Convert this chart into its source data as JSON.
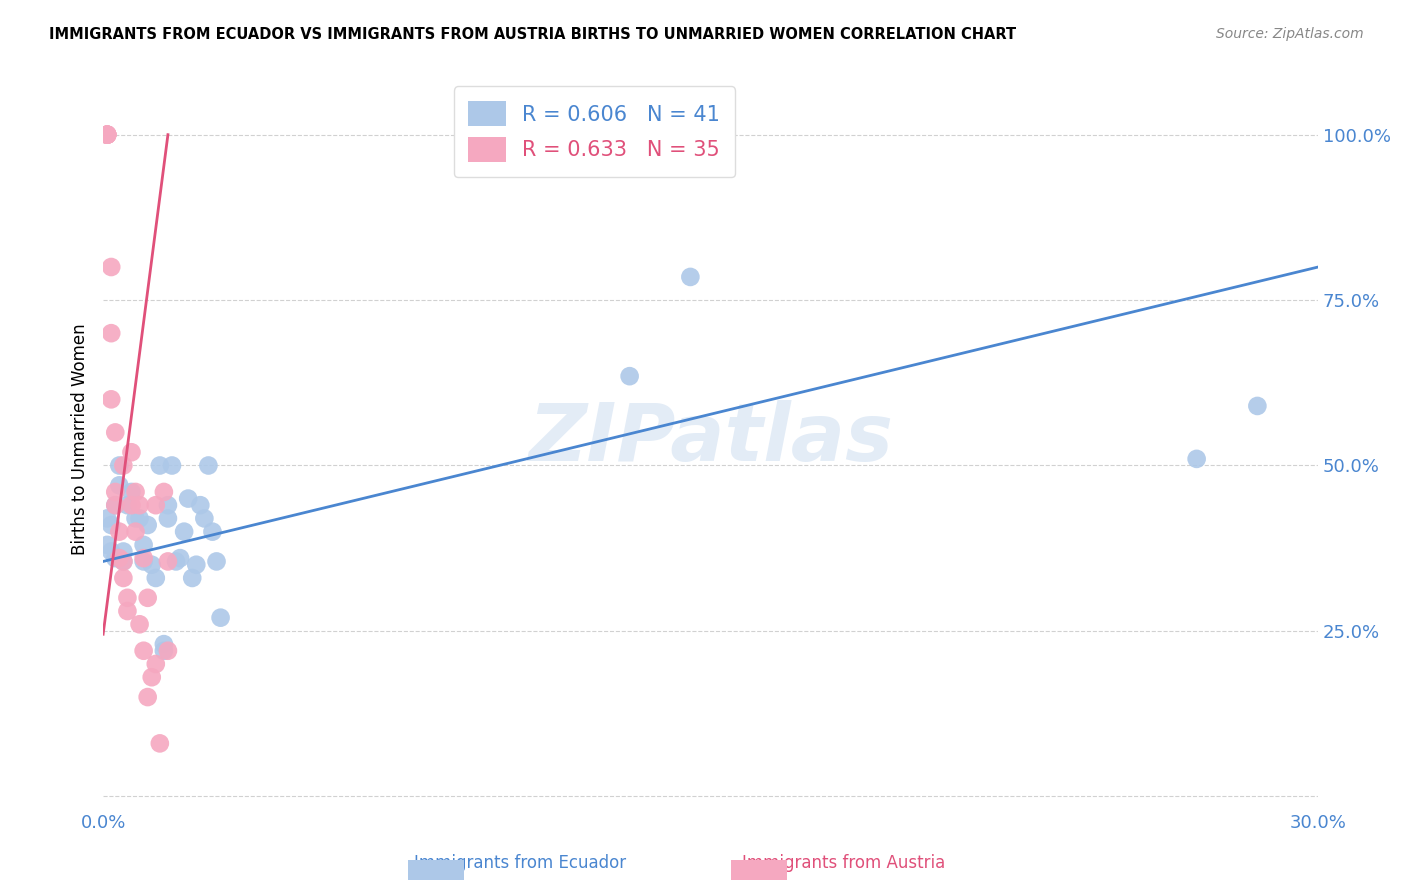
{
  "title": "IMMIGRANTS FROM ECUADOR VS IMMIGRANTS FROM AUSTRIA BIRTHS TO UNMARRIED WOMEN CORRELATION CHART",
  "source": "Source: ZipAtlas.com",
  "ylabel": "Births to Unmarried Women",
  "xlim": [
    0.0,
    0.3
  ],
  "ylim": [
    -0.02,
    1.1
  ],
  "ecuador_color": "#adc8e8",
  "austria_color": "#f5a8c0",
  "line_ecuador_color": "#4a86d0",
  "line_austria_color": "#e0507a",
  "legend_ecuador_r": "R = 0.606",
  "legend_ecuador_n": "N = 41",
  "legend_austria_r": "R = 0.633",
  "legend_austria_n": "N = 35",
  "watermark": "ZIPatlas",
  "ecuador_x": [
    0.001,
    0.001,
    0.002,
    0.002,
    0.003,
    0.003,
    0.004,
    0.004,
    0.005,
    0.005,
    0.006,
    0.007,
    0.008,
    0.009,
    0.01,
    0.01,
    0.011,
    0.012,
    0.013,
    0.014,
    0.015,
    0.015,
    0.016,
    0.016,
    0.017,
    0.018,
    0.019,
    0.02,
    0.021,
    0.022,
    0.023,
    0.024,
    0.025,
    0.026,
    0.027,
    0.028,
    0.029,
    0.13,
    0.145,
    0.27,
    0.285
  ],
  "ecuador_y": [
    0.38,
    0.42,
    0.37,
    0.41,
    0.36,
    0.44,
    0.47,
    0.5,
    0.355,
    0.37,
    0.44,
    0.46,
    0.42,
    0.42,
    0.355,
    0.38,
    0.41,
    0.35,
    0.33,
    0.5,
    0.22,
    0.23,
    0.42,
    0.44,
    0.5,
    0.355,
    0.36,
    0.4,
    0.45,
    0.33,
    0.35,
    0.44,
    0.42,
    0.5,
    0.4,
    0.355,
    0.27,
    0.635,
    0.785,
    0.51,
    0.59
  ],
  "austria_x": [
    0.001,
    0.001,
    0.001,
    0.001,
    0.001,
    0.002,
    0.002,
    0.002,
    0.003,
    0.003,
    0.003,
    0.004,
    0.004,
    0.005,
    0.005,
    0.005,
    0.006,
    0.006,
    0.007,
    0.007,
    0.008,
    0.008,
    0.009,
    0.009,
    0.01,
    0.01,
    0.011,
    0.011,
    0.012,
    0.013,
    0.013,
    0.014,
    0.015,
    0.016,
    0.016
  ],
  "austria_y": [
    1.0,
    1.0,
    1.0,
    1.0,
    1.0,
    0.8,
    0.7,
    0.6,
    0.55,
    0.46,
    0.44,
    0.4,
    0.36,
    0.355,
    0.33,
    0.5,
    0.3,
    0.28,
    0.44,
    0.52,
    0.46,
    0.4,
    0.44,
    0.26,
    0.22,
    0.36,
    0.3,
    0.15,
    0.18,
    0.2,
    0.44,
    0.08,
    0.46,
    0.355,
    0.22
  ],
  "ecuador_line_x": [
    0.0,
    0.3
  ],
  "ecuador_line_y": [
    0.355,
    0.8
  ],
  "austria_line_x": [
    0.0,
    0.016
  ],
  "austria_line_y": [
    0.245,
    1.0
  ]
}
